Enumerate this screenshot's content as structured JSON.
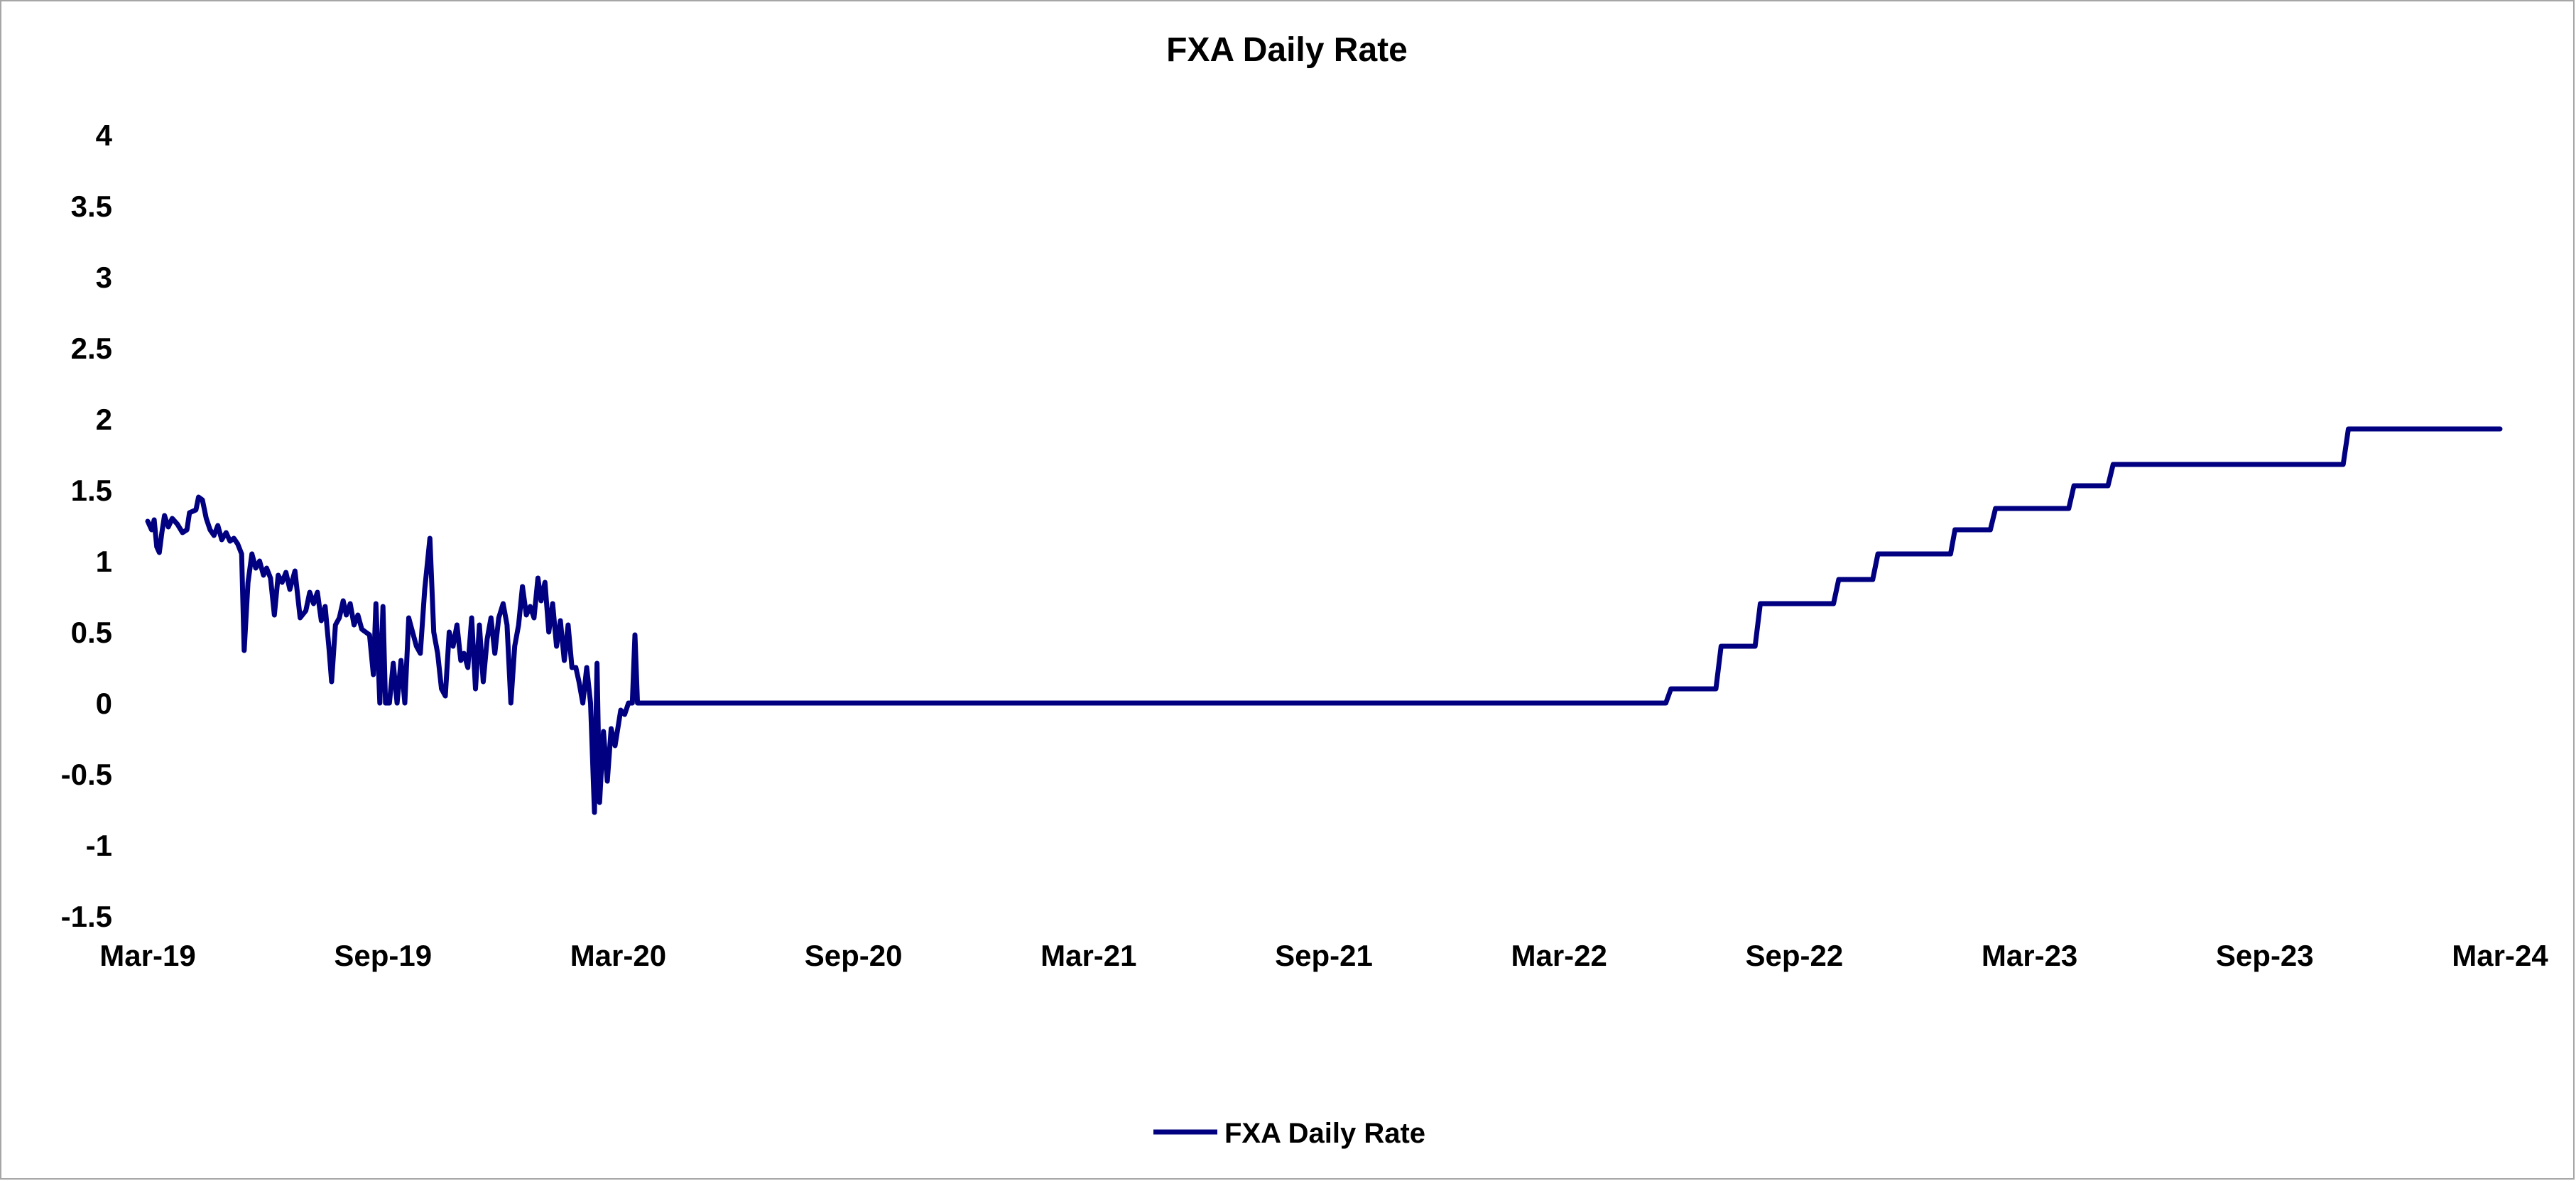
{
  "chart_data": {
    "type": "line",
    "title": "FXA Daily Rate",
    "xlabel": "",
    "ylabel": "",
    "xlim": [
      "2019-03",
      "2024-03"
    ],
    "ylim": [
      -1.5,
      4
    ],
    "y_ticks": [
      "4",
      "3.5",
      "3",
      "2.5",
      "2",
      "1.5",
      "1",
      "0.5",
      "0",
      "-0.5",
      "-1",
      "-1.5"
    ],
    "y_tick_values": [
      4,
      3.5,
      3,
      2.5,
      2,
      1.5,
      1,
      0.5,
      0,
      -0.5,
      -1,
      -1.5
    ],
    "x_ticks": [
      "Mar-19",
      "Sep-19",
      "Mar-20",
      "Sep-20",
      "Mar-21",
      "Sep-21",
      "Mar-22",
      "Sep-22",
      "Mar-23",
      "Sep-23",
      "Mar-24"
    ],
    "x_tick_values": [
      "2019-03",
      "2019-09",
      "2020-03",
      "2020-09",
      "2021-03",
      "2021-09",
      "2022-03",
      "2022-09",
      "2023-03",
      "2023-09",
      "2024-03"
    ],
    "grid": false,
    "legend_position": "bottom",
    "colors": {
      "series": "#000080"
    },
    "series": [
      {
        "name": "FXA Daily Rate",
        "points": [
          [
            "2019-03-01",
            1.28
          ],
          [
            "2019-03-04",
            1.22
          ],
          [
            "2019-03-06",
            1.29
          ],
          [
            "2019-03-08",
            1.1
          ],
          [
            "2019-03-10",
            1.06
          ],
          [
            "2019-03-12",
            1.2
          ],
          [
            "2019-03-14",
            1.32
          ],
          [
            "2019-03-17",
            1.24
          ],
          [
            "2019-03-20",
            1.3
          ],
          [
            "2019-03-24",
            1.26
          ],
          [
            "2019-03-28",
            1.2
          ],
          [
            "2019-04-01",
            1.22
          ],
          [
            "2019-04-03",
            1.34
          ],
          [
            "2019-04-08",
            1.36
          ],
          [
            "2019-04-10",
            1.45
          ],
          [
            "2019-04-13",
            1.43
          ],
          [
            "2019-04-16",
            1.3
          ],
          [
            "2019-04-19",
            1.22
          ],
          [
            "2019-04-22",
            1.18
          ],
          [
            "2019-04-25",
            1.25
          ],
          [
            "2019-04-28",
            1.15
          ],
          [
            "2019-05-01",
            1.2
          ],
          [
            "2019-05-04",
            1.14
          ],
          [
            "2019-05-07",
            1.16
          ],
          [
            "2019-05-10",
            1.12
          ],
          [
            "2019-05-13",
            1.05
          ],
          [
            "2019-05-15",
            0.37
          ],
          [
            "2019-05-18",
            0.85
          ],
          [
            "2019-05-21",
            1.05
          ],
          [
            "2019-05-24",
            0.95
          ],
          [
            "2019-05-27",
            1.0
          ],
          [
            "2019-05-30",
            0.9
          ],
          [
            "2019-06-02",
            0.95
          ],
          [
            "2019-06-05",
            0.88
          ],
          [
            "2019-06-08",
            0.62
          ],
          [
            "2019-06-11",
            0.9
          ],
          [
            "2019-06-14",
            0.85
          ],
          [
            "2019-06-17",
            0.92
          ],
          [
            "2019-06-20",
            0.8
          ],
          [
            "2019-06-24",
            0.93
          ],
          [
            "2019-06-28",
            0.6
          ],
          [
            "2019-07-02",
            0.65
          ],
          [
            "2019-07-05",
            0.78
          ],
          [
            "2019-07-08",
            0.7
          ],
          [
            "2019-07-11",
            0.78
          ],
          [
            "2019-07-14",
            0.58
          ],
          [
            "2019-07-17",
            0.68
          ],
          [
            "2019-07-20",
            0.38
          ],
          [
            "2019-07-22",
            0.15
          ],
          [
            "2019-07-25",
            0.55
          ],
          [
            "2019-07-28",
            0.6
          ],
          [
            "2019-07-31",
            0.72
          ],
          [
            "2019-08-03",
            0.62
          ],
          [
            "2019-08-06",
            0.7
          ],
          [
            "2019-08-09",
            0.55
          ],
          [
            "2019-08-12",
            0.62
          ],
          [
            "2019-08-15",
            0.52
          ],
          [
            "2019-08-18",
            0.5
          ],
          [
            "2019-08-21",
            0.48
          ],
          [
            "2019-08-24",
            0.2
          ],
          [
            "2019-08-26",
            0.7
          ],
          [
            "2019-08-29",
            0.0
          ],
          [
            "2019-09-01",
            0.68
          ],
          [
            "2019-09-03",
            0.0
          ],
          [
            "2019-09-06",
            0.0
          ],
          [
            "2019-09-09",
            0.28
          ],
          [
            "2019-09-12",
            0.0
          ],
          [
            "2019-09-15",
            0.3
          ],
          [
            "2019-09-18",
            0.0
          ],
          [
            "2019-09-21",
            0.6
          ],
          [
            "2019-09-24",
            0.5
          ],
          [
            "2019-09-27",
            0.4
          ],
          [
            "2019-09-30",
            0.35
          ],
          [
            "2019-10-03",
            0.8
          ],
          [
            "2019-10-07",
            1.16
          ],
          [
            "2019-10-10",
            0.5
          ],
          [
            "2019-10-13",
            0.35
          ],
          [
            "2019-10-16",
            0.1
          ],
          [
            "2019-10-19",
            0.05
          ],
          [
            "2019-10-22",
            0.5
          ],
          [
            "2019-10-25",
            0.4
          ],
          [
            "2019-10-28",
            0.55
          ],
          [
            "2019-10-31",
            0.3
          ],
          [
            "2019-11-03",
            0.35
          ],
          [
            "2019-11-06",
            0.25
          ],
          [
            "2019-11-09",
            0.6
          ],
          [
            "2019-11-12",
            0.1
          ],
          [
            "2019-11-15",
            0.55
          ],
          [
            "2019-11-18",
            0.15
          ],
          [
            "2019-11-21",
            0.45
          ],
          [
            "2019-11-24",
            0.6
          ],
          [
            "2019-11-27",
            0.35
          ],
          [
            "2019-11-30",
            0.6
          ],
          [
            "2019-12-03",
            0.7
          ],
          [
            "2019-12-06",
            0.55
          ],
          [
            "2019-12-09",
            0.0
          ],
          [
            "2019-12-12",
            0.4
          ],
          [
            "2019-12-15",
            0.55
          ],
          [
            "2019-12-18",
            0.82
          ],
          [
            "2019-12-21",
            0.62
          ],
          [
            "2019-12-24",
            0.68
          ],
          [
            "2019-12-27",
            0.6
          ],
          [
            "2019-12-30",
            0.88
          ],
          [
            "2020-01-02",
            0.72
          ],
          [
            "2020-01-05",
            0.85
          ],
          [
            "2020-01-08",
            0.5
          ],
          [
            "2020-01-11",
            0.7
          ],
          [
            "2020-01-14",
            0.4
          ],
          [
            "2020-01-17",
            0.58
          ],
          [
            "2020-01-20",
            0.3
          ],
          [
            "2020-01-23",
            0.55
          ],
          [
            "2020-01-26",
            0.25
          ],
          [
            "2020-01-29",
            0.25
          ],
          [
            "2020-02-01",
            0.15
          ],
          [
            "2020-02-04",
            0.0
          ],
          [
            "2020-02-07",
            0.25
          ],
          [
            "2020-02-10",
            0.0
          ],
          [
            "2020-02-13",
            -0.77
          ],
          [
            "2020-02-15",
            0.28
          ],
          [
            "2020-02-17",
            -0.7
          ],
          [
            "2020-02-20",
            -0.2
          ],
          [
            "2020-02-23",
            -0.55
          ],
          [
            "2020-02-26",
            -0.18
          ],
          [
            "2020-02-29",
            -0.3
          ],
          [
            "2020-03-03",
            -0.05
          ],
          [
            "2020-03-06",
            -0.08
          ],
          [
            "2020-03-09",
            0.0
          ],
          [
            "2020-03-12",
            0.0
          ],
          [
            "2020-03-14",
            0.48
          ],
          [
            "2020-03-16",
            0.0
          ],
          [
            "2022-05-23",
            0.0
          ],
          [
            "2022-05-27",
            0.1
          ],
          [
            "2022-07-01",
            0.1
          ],
          [
            "2022-07-05",
            0.4
          ],
          [
            "2022-08-01",
            0.4
          ],
          [
            "2022-08-05",
            0.7
          ],
          [
            "2022-10-01",
            0.7
          ],
          [
            "2022-10-05",
            0.87
          ],
          [
            "2022-11-01",
            0.87
          ],
          [
            "2022-11-05",
            1.05
          ],
          [
            "2022-12-31",
            1.05
          ],
          [
            "2023-01-04",
            1.22
          ],
          [
            "2023-02-01",
            1.22
          ],
          [
            "2023-02-05",
            1.37
          ],
          [
            "2023-04-01",
            1.37
          ],
          [
            "2023-04-05",
            1.53
          ],
          [
            "2023-05-01",
            1.53
          ],
          [
            "2023-05-05",
            1.68
          ],
          [
            "2023-11-01",
            1.68
          ],
          [
            "2023-11-05",
            1.93
          ],
          [
            "2024-03-01",
            1.93
          ]
        ]
      }
    ]
  }
}
